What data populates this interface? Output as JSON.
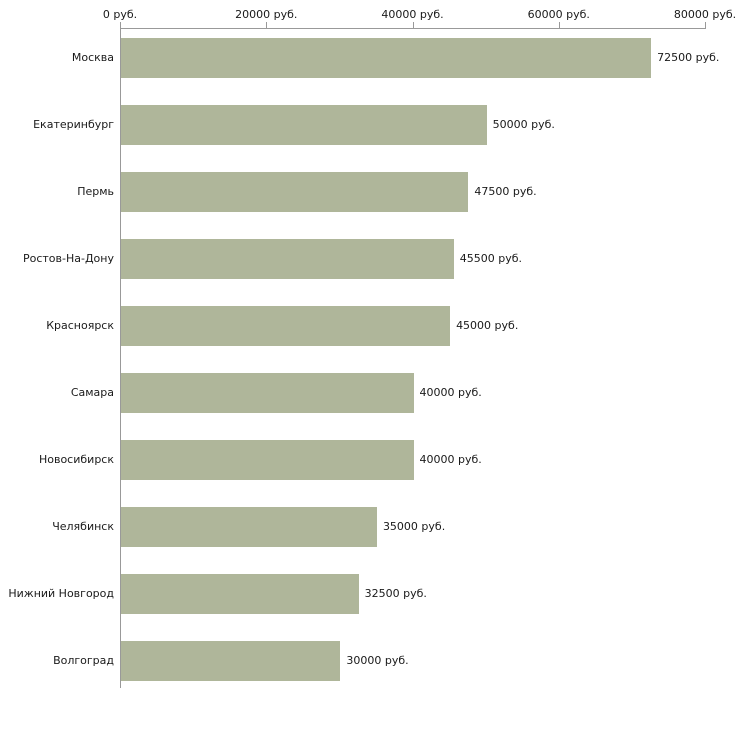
{
  "chart_data": {
    "type": "bar",
    "orientation": "horizontal",
    "title": "",
    "xlabel": "",
    "ylabel": "",
    "categories": [
      "Москва",
      "Екатеринбург",
      "Пермь",
      "Ростов-На-Дону",
      "Красноярск",
      "Самара",
      "Новосибирск",
      "Челябинск",
      "Нижний Новгород",
      "Волгоград"
    ],
    "values": [
      72500,
      50000,
      47500,
      45500,
      45000,
      40000,
      40000,
      35000,
      32500,
      30000
    ],
    "value_labels": [
      "72500 руб.",
      "50000 руб.",
      "47500 руб.",
      "45500 руб.",
      "45000 руб.",
      "40000 руб.",
      "40000 руб.",
      "35000 руб.",
      "32500 руб.",
      "30000 руб."
    ],
    "x_ticks": [
      0,
      20000,
      40000,
      60000,
      80000
    ],
    "x_tick_labels": [
      "0 руб.",
      "20000 руб.",
      "40000 руб.",
      "60000 руб.",
      "80000 руб."
    ],
    "xlim": [
      0,
      80000
    ],
    "bar_color": "#afb69a",
    "axis_color": "#999999",
    "grid": "off",
    "legend": "none",
    "x_axis_position": "top"
  }
}
